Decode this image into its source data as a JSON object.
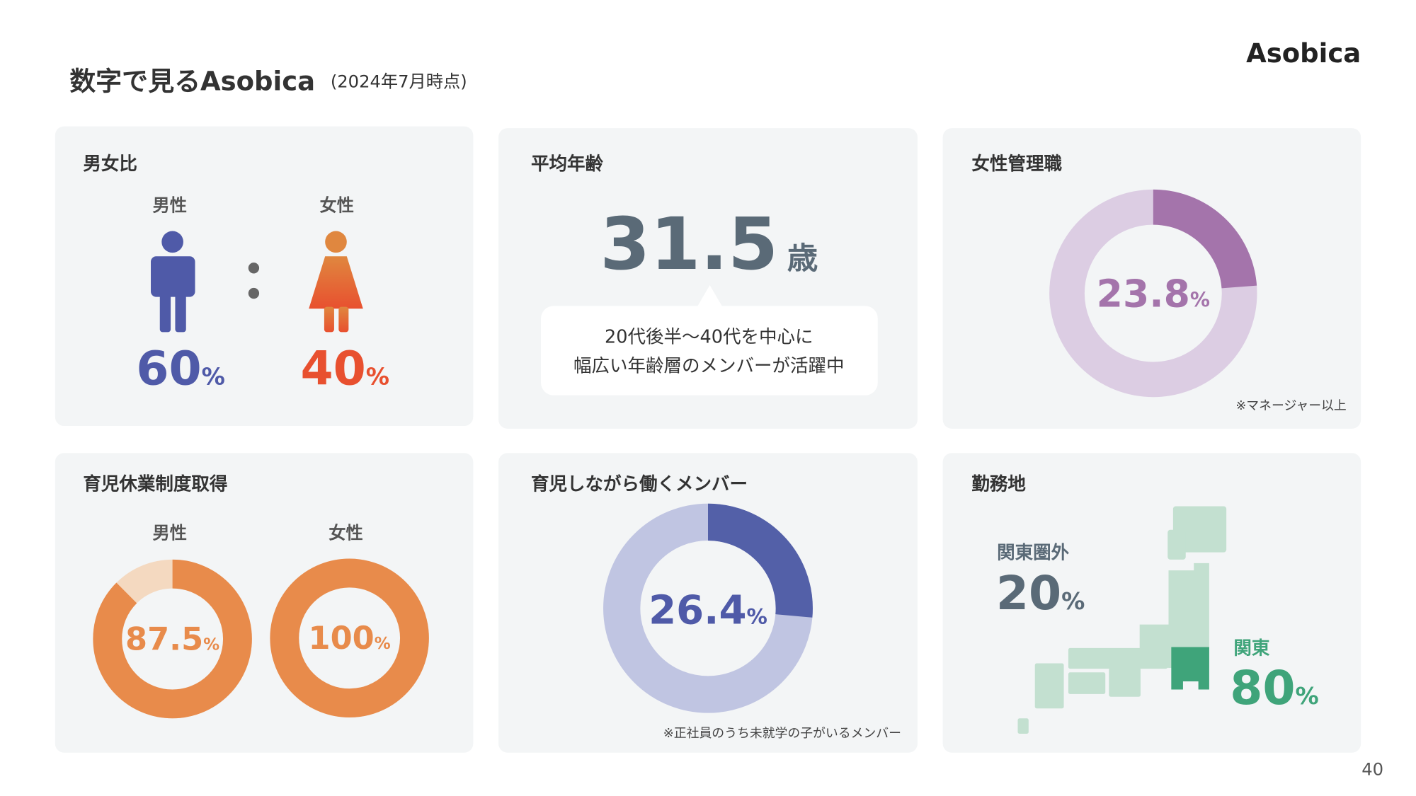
{
  "header": {
    "title": "数字で見るAsobica",
    "note": "(2024年7月時点)",
    "logo": "Asobica",
    "page": "40"
  },
  "gender": {
    "title": "男女比",
    "male": {
      "label": "男性",
      "value": 60
    },
    "female": {
      "label": "女性",
      "value": 40
    },
    "unit": "%"
  },
  "age": {
    "title": "平均年齢",
    "value": 31.5,
    "unit": "歳",
    "bubble": [
      "20代後半〜40代を中心に",
      "幅広い年齢層のメンバーが活躍中"
    ]
  },
  "women_managers": {
    "title": "女性管理職",
    "value": 23.8,
    "unit": "%",
    "note": "※マネージャー以上"
  },
  "parental_leave": {
    "title": "育児休業制度取得",
    "male": {
      "label": "男性",
      "value": 87.5
    },
    "female": {
      "label": "女性",
      "value": 100
    },
    "unit": "%"
  },
  "working_parents": {
    "title": "育児しながら働くメンバー",
    "value": 26.4,
    "unit": "%",
    "note": "※正社員のうち未就学の子がいるメンバー"
  },
  "location": {
    "title": "勤務地",
    "outside": {
      "label": "関東圏外",
      "value": 20
    },
    "kanto": {
      "label": "関東",
      "value": 80
    },
    "unit": "%"
  }
}
